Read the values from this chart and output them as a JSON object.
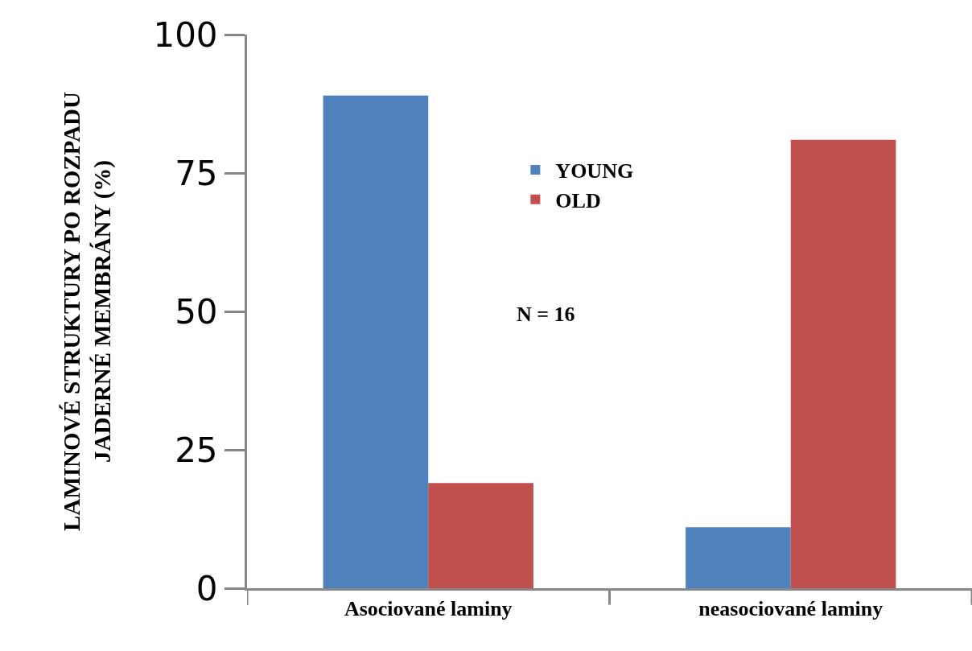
{
  "chart_data": {
    "type": "bar",
    "ylabel": "LAMINOVÉ STRUKTURY PO ROZPADU\nJADERNÉ MEMBRÁNY (%)",
    "categories": [
      "Asociované laminy",
      "neasociované laminy"
    ],
    "series": [
      {
        "name": "YOUNG",
        "color": "#4f81bd",
        "values": [
          89,
          11
        ]
      },
      {
        "name": "OLD",
        "color": "#c0504d",
        "values": [
          19,
          81
        ]
      }
    ],
    "ylim": [
      0,
      100
    ],
    "yticks": [
      0,
      25,
      50,
      75,
      100
    ],
    "legend": "top right",
    "annotations": [
      "N = 16"
    ]
  }
}
